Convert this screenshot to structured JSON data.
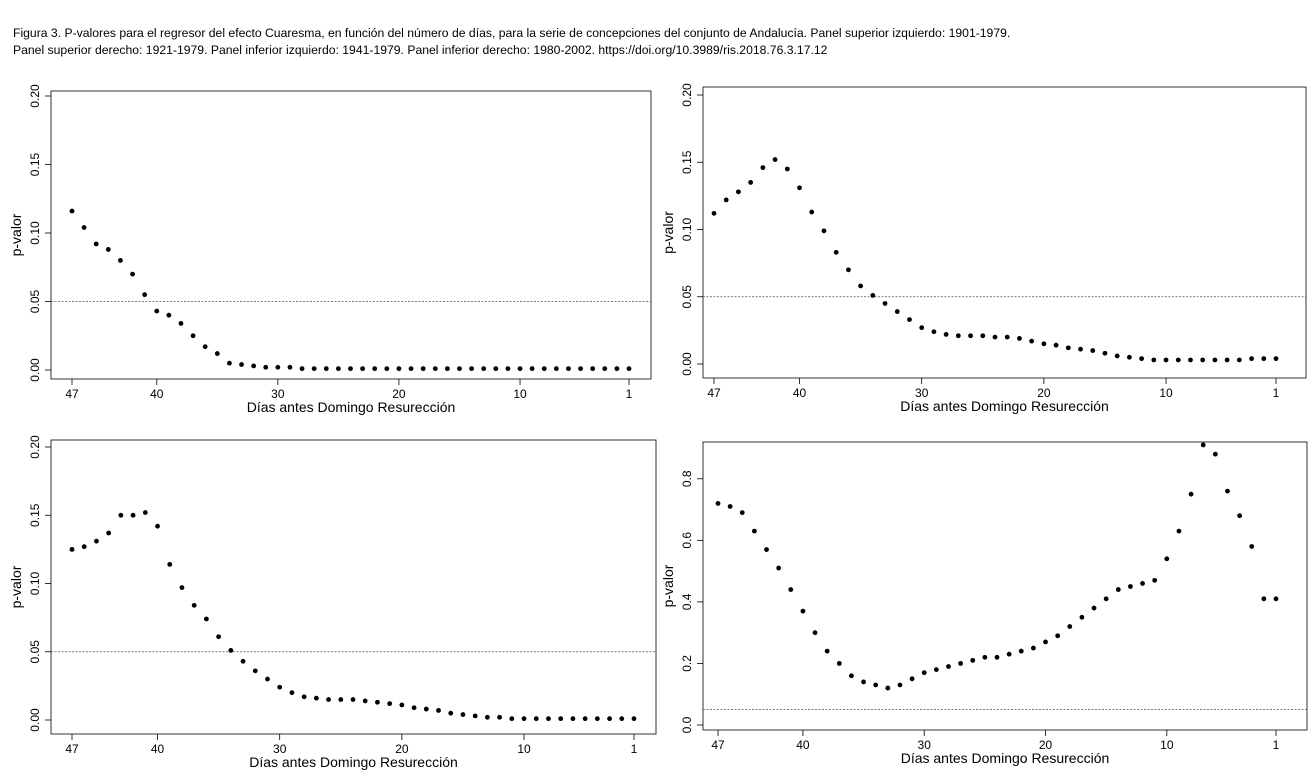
{
  "caption": {
    "line1": "Figura 3. P-valores para el regresor del efecto Cuaresma, en función del número de días, para la serie de concepciones del conjunto de Andalucía. Panel superior izquierdo: 1901-1979.",
    "line2": "Panel superior derecho: 1921-1979. Panel inferior izquierdo: 1941-1979. Panel inferior derecho: 1980-2002. https://doi.org/10.3989/ris.2018.76.3.17.12"
  },
  "chart_data": [
    {
      "id": "top-left",
      "type": "scatter",
      "period": "1901-1979",
      "xlabel": "Días antes Domingo Resurección",
      "ylabel": "p-valor",
      "xlim": [
        47,
        1
      ],
      "ylim": [
        0,
        0.2
      ],
      "xticks": [
        47,
        40,
        30,
        20,
        10,
        1
      ],
      "yticks": [
        "0.00",
        "0.05",
        "0.10",
        "0.15",
        "0.20"
      ],
      "reference_line": 0.05,
      "x_from": 47,
      "x_to": 1,
      "values": [
        0.116,
        0.104,
        0.092,
        0.088,
        0.08,
        0.07,
        0.055,
        0.043,
        0.04,
        0.034,
        0.025,
        0.017,
        0.012,
        0.005,
        0.004,
        0.003,
        0.002,
        0.002,
        0.002,
        0.001,
        0.001,
        0.001,
        0.001,
        0.001,
        0.001,
        0.001,
        0.001,
        0.001,
        0.001,
        0.001,
        0.001,
        0.001,
        0.001,
        0.001,
        0.001,
        0.001,
        0.001,
        0.001,
        0.001,
        0.001,
        0.001,
        0.001,
        0.001,
        0.001,
        0.001,
        0.001,
        0.001
      ]
    },
    {
      "id": "top-right",
      "type": "scatter",
      "period": "1921-1979",
      "xlabel": "Días antes Domingo Resurección",
      "ylabel": "p-valor",
      "xlim": [
        47,
        1
      ],
      "ylim": [
        0,
        0.2
      ],
      "xticks": [
        47,
        40,
        30,
        20,
        10,
        1
      ],
      "yticks": [
        "0.00",
        "0.05",
        "0.10",
        "0.15",
        "0.20"
      ],
      "reference_line": 0.05,
      "x_from": 47,
      "x_to": 1,
      "values": [
        0.112,
        0.122,
        0.128,
        0.135,
        0.146,
        0.152,
        0.145,
        0.131,
        0.113,
        0.099,
        0.083,
        0.07,
        0.058,
        0.051,
        0.045,
        0.039,
        0.033,
        0.027,
        0.024,
        0.022,
        0.021,
        0.021,
        0.021,
        0.02,
        0.02,
        0.019,
        0.017,
        0.015,
        0.014,
        0.012,
        0.011,
        0.01,
        0.008,
        0.006,
        0.005,
        0.004,
        0.003,
        0.003,
        0.003,
        0.003,
        0.003,
        0.003,
        0.003,
        0.003,
        0.004,
        0.004,
        0.004
      ]
    },
    {
      "id": "bottom-left",
      "type": "scatter",
      "period": "1941-1979",
      "xlabel": "Días antes Domingo Resurección",
      "ylabel": "p-valor",
      "xlim": [
        47,
        1
      ],
      "ylim": [
        0,
        0.2
      ],
      "xticks": [
        47,
        40,
        30,
        20,
        10,
        1
      ],
      "yticks": [
        "0.00",
        "0.05",
        "0.10",
        "0.15",
        "0.20"
      ],
      "reference_line": 0.05,
      "x_from": 47,
      "x_to": 1,
      "values": [
        0.125,
        0.127,
        0.131,
        0.137,
        0.15,
        0.15,
        0.152,
        0.142,
        0.114,
        0.097,
        0.084,
        0.074,
        0.061,
        0.051,
        0.043,
        0.036,
        0.03,
        0.024,
        0.02,
        0.017,
        0.016,
        0.015,
        0.015,
        0.015,
        0.014,
        0.013,
        0.012,
        0.011,
        0.009,
        0.008,
        0.007,
        0.005,
        0.004,
        0.003,
        0.002,
        0.002,
        0.001,
        0.001,
        0.001,
        0.001,
        0.001,
        0.001,
        0.001,
        0.001,
        0.001,
        0.001,
        0.001
      ]
    },
    {
      "id": "bottom-right",
      "type": "scatter",
      "period": "1980-2002",
      "xlabel": "Días antes Domingo Resurección",
      "ylabel": "p-valor",
      "xlim": [
        47,
        1
      ],
      "ylim": [
        0,
        0.9
      ],
      "xticks": [
        47,
        40,
        30,
        20,
        10,
        1
      ],
      "yticks": [
        "0.0",
        "0.2",
        "0.4",
        "0.6",
        "0.8"
      ],
      "reference_line": 0.05,
      "x_from": 47,
      "x_to": 1,
      "values": [
        0.72,
        0.71,
        0.69,
        0.63,
        0.57,
        0.51,
        0.44,
        0.37,
        0.3,
        0.24,
        0.2,
        0.16,
        0.14,
        0.13,
        0.12,
        0.13,
        0.15,
        0.17,
        0.18,
        0.19,
        0.2,
        0.21,
        0.22,
        0.22,
        0.23,
        0.24,
        0.25,
        0.27,
        0.29,
        0.32,
        0.35,
        0.38,
        0.41,
        0.44,
        0.45,
        0.46,
        0.47,
        0.54,
        0.63,
        0.75,
        0.91,
        0.88,
        0.76,
        0.68,
        0.58,
        0.41,
        0.41
      ]
    }
  ]
}
